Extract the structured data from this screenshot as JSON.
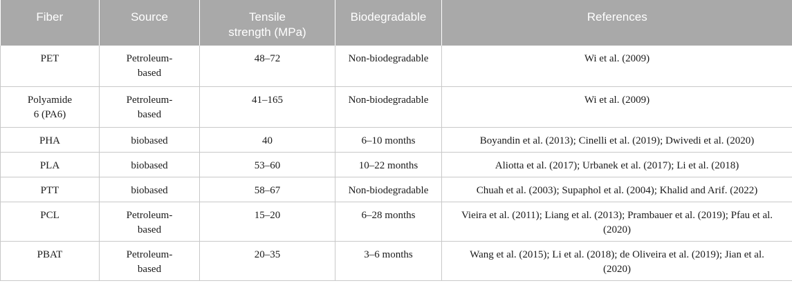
{
  "table": {
    "headers": {
      "fiber": "Fiber",
      "source": "Source",
      "tensile_line1": "Tensile",
      "tensile_line2": "strength (MPa)",
      "biodegradable": "Biodegradable",
      "references": "References"
    },
    "rows": [
      {
        "fiber": "PET",
        "source_l1": "Petroleum-",
        "source_l2": "based",
        "tensile": "48–72",
        "biodegradable": "Non-biodegradable",
        "references": "Wi et al. (2009)"
      },
      {
        "fiber_l1": "Polyamide",
        "fiber_l2": "6 (PA6)",
        "source_l1": "Petroleum-",
        "source_l2": "based",
        "tensile": "41–165",
        "biodegradable": "Non-biodegradable",
        "references": "Wi et al. (2009)"
      },
      {
        "fiber": "PHA",
        "source": "biobased",
        "tensile": "40",
        "biodegradable": "6–10 months",
        "references": "Boyandin et al. (2013); Cinelli et al. (2019); Dwivedi et al. (2020)"
      },
      {
        "fiber": "PLA",
        "source": "biobased",
        "tensile": "53–60",
        "biodegradable": "10–22 months",
        "references": "Aliotta et al. (2017); Urbanek et al. (2017); Li et al. (2018)"
      },
      {
        "fiber": "PTT",
        "source": "biobased",
        "tensile": "58–67",
        "biodegradable": "Non-biodegradable",
        "references": "Chuah et al. (2003); Supaphol et al. (2004); Khalid and Arif. (2022)"
      },
      {
        "fiber": "PCL",
        "source_l1": "Petroleum-",
        "source_l2": "based",
        "tensile": "15–20",
        "biodegradable": "6–28 months",
        "references_l1": "Vieira et al. (2011); Liang et al. (2013); Prambauer et al. (2019); Pfau et al.",
        "references_l2": "(2020)"
      },
      {
        "fiber": "PBAT",
        "source_l1": "Petroleum-",
        "source_l2": "based",
        "tensile": "20–35",
        "biodegradable": "3–6 months",
        "references_l1": "Wang et al. (2015); Li et al. (2018); de Oliveira et al. (2019); Jian et al.",
        "references_l2": "(2020)"
      }
    ]
  }
}
